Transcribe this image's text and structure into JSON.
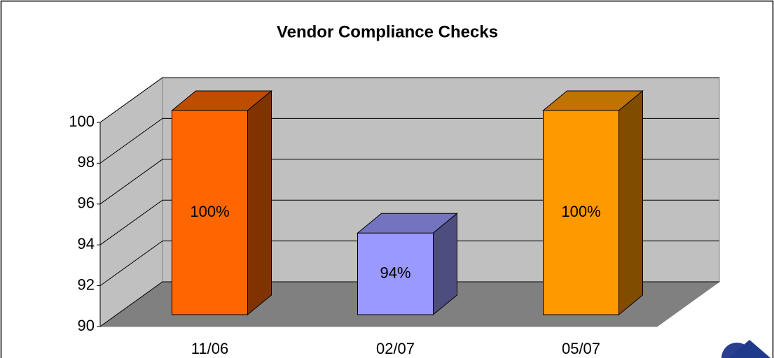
{
  "chart_data": {
    "type": "bar3d",
    "title": "Vendor Compliance Checks",
    "categories": [
      "11/06",
      "02/07",
      "05/07"
    ],
    "values": [
      100,
      94,
      100
    ],
    "value_labels": [
      "100%",
      "94%",
      "100%"
    ],
    "colors": [
      "#FF6600",
      "#9999FF",
      "#FF9900"
    ],
    "ylim": [
      90,
      100
    ],
    "yticks": [
      90,
      92,
      94,
      96,
      98,
      100
    ],
    "grid": true
  }
}
